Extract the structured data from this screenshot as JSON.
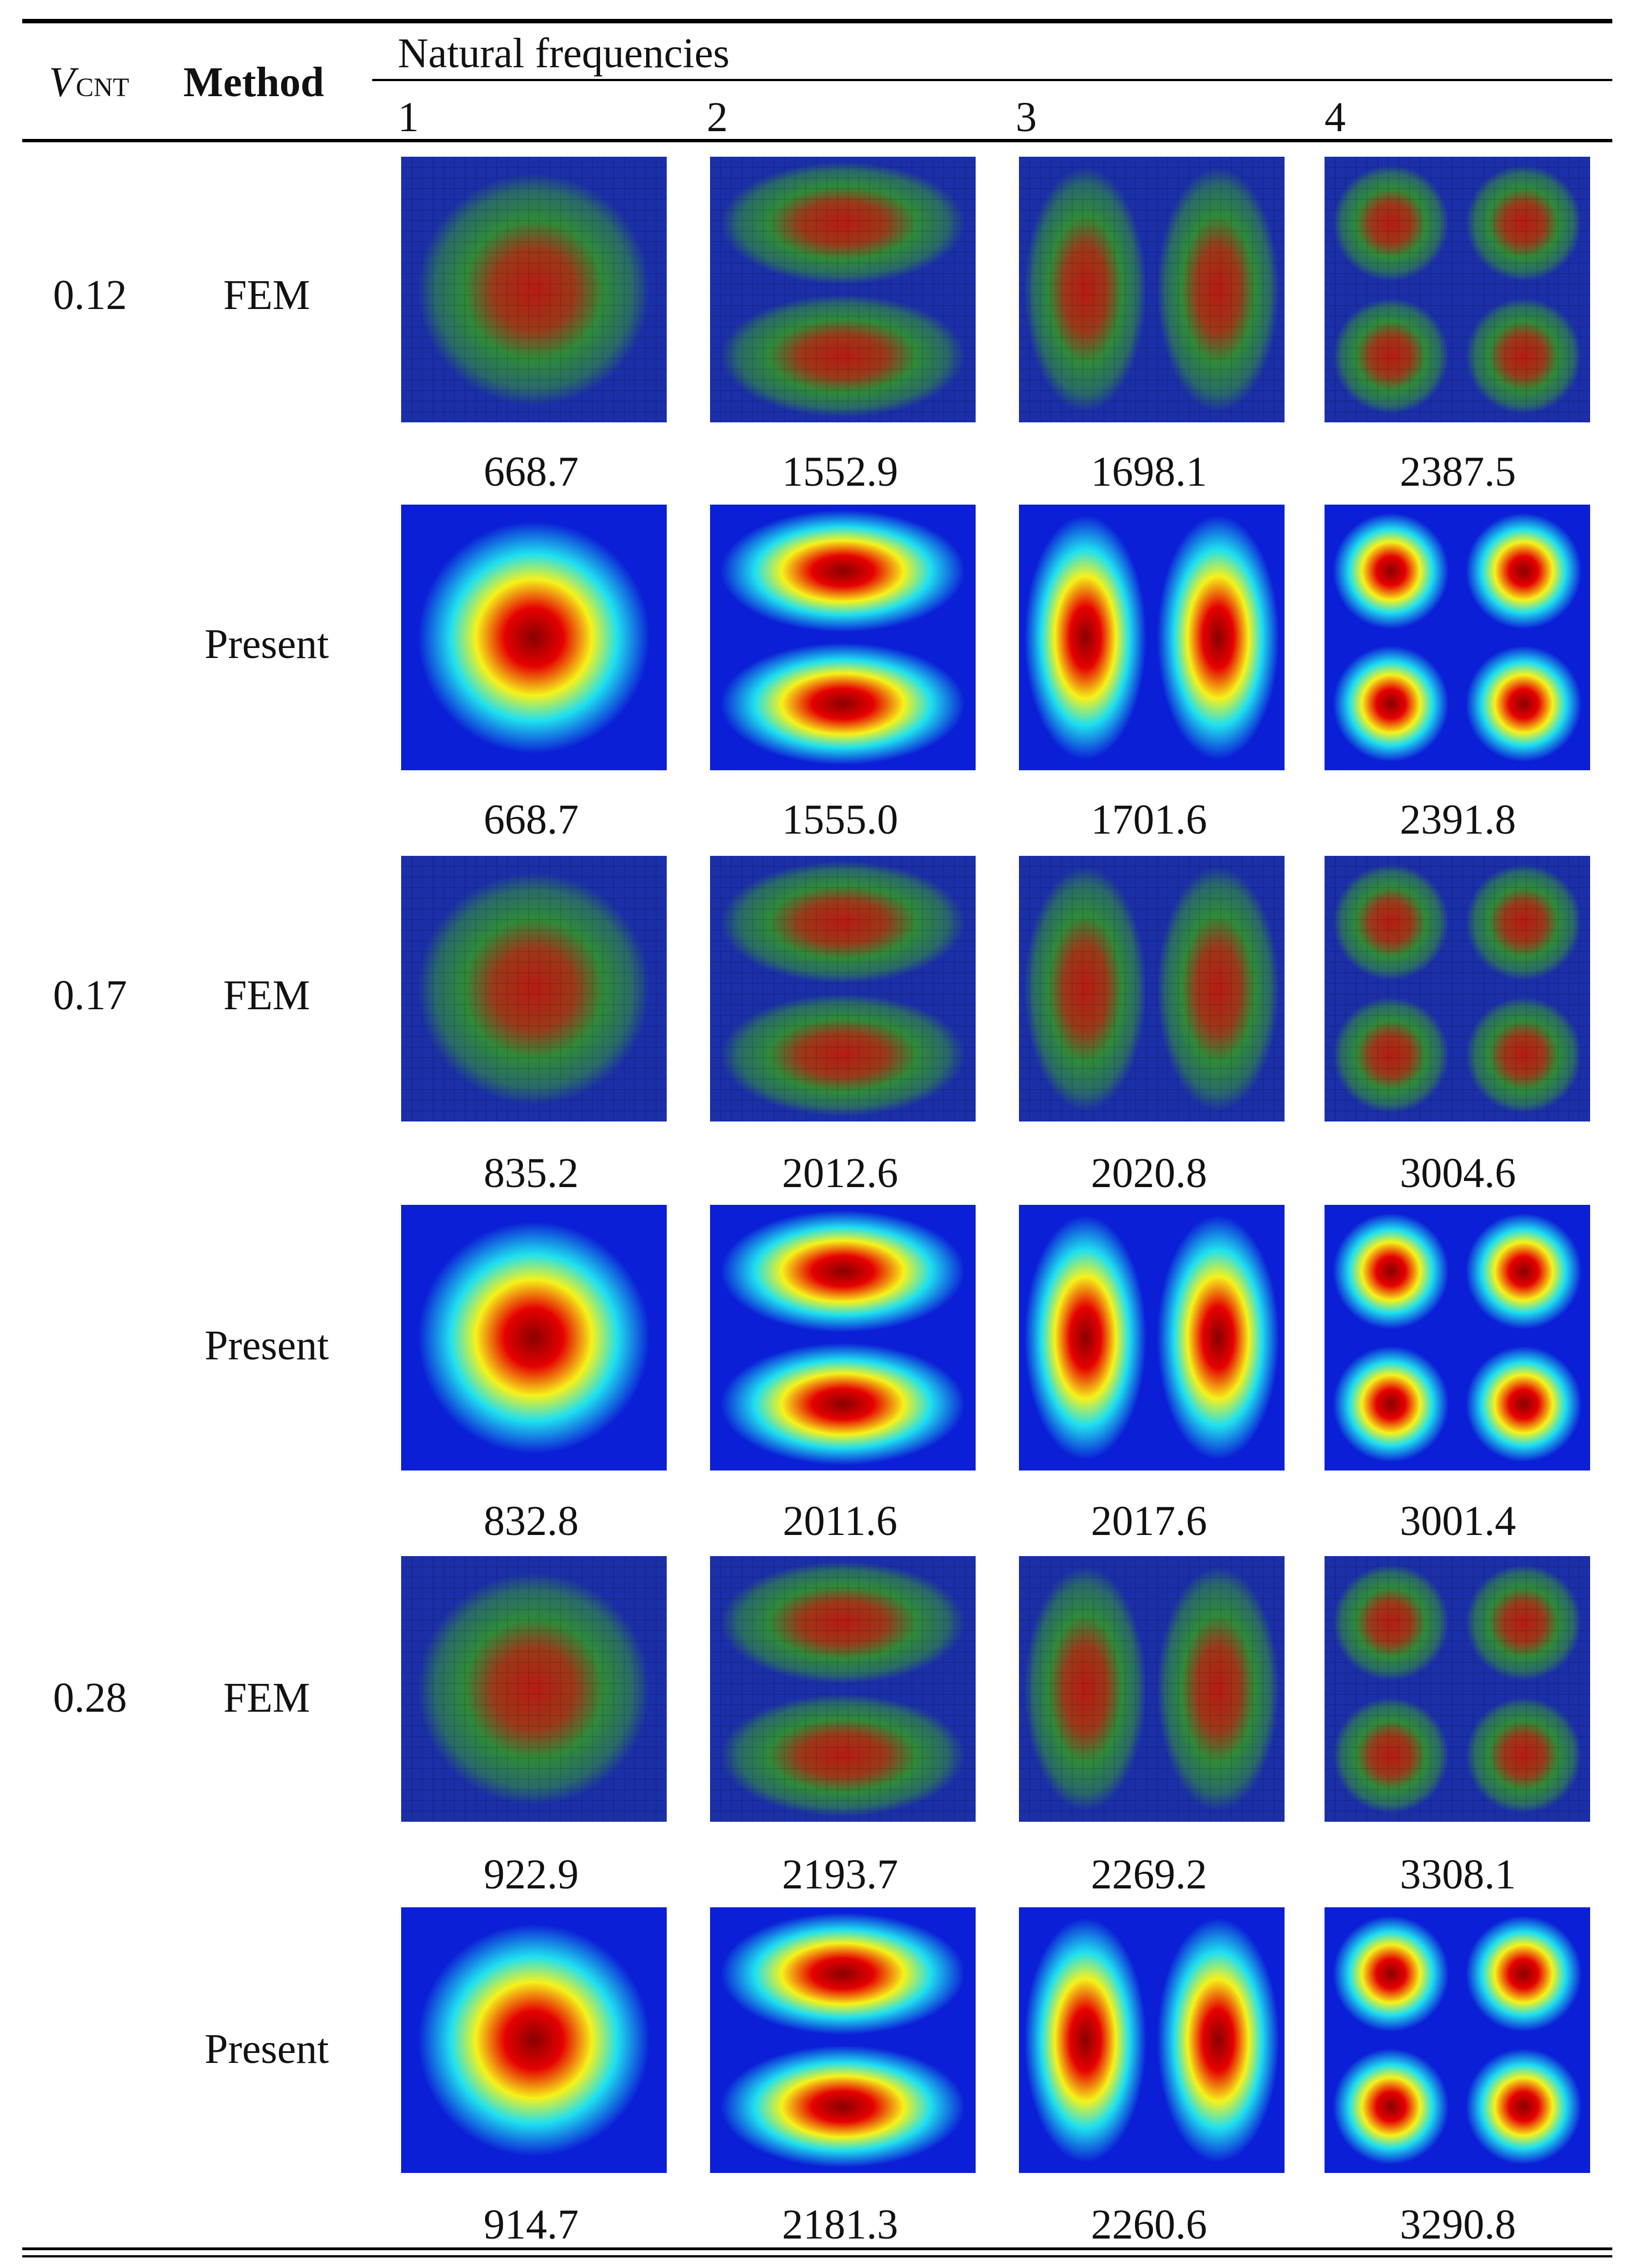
{
  "header": {
    "vcnt_main": "V",
    "vcnt_sub": "CNT",
    "method": "Method",
    "natural_frequencies": "Natural frequencies",
    "modes": [
      "1",
      "2",
      "3",
      "4"
    ]
  },
  "rows": [
    {
      "vcnt": "0.12",
      "method": "FEM",
      "freqs": [
        "668.7",
        "1552.9",
        "1698.1",
        "2387.5"
      ]
    },
    {
      "vcnt": "",
      "method": "Present",
      "freqs": [
        "668.7",
        "1555.0",
        "1701.6",
        "2391.8"
      ]
    },
    {
      "vcnt": "0.17",
      "method": "FEM",
      "freqs": [
        "835.2",
        "2012.6",
        "2020.8",
        "3004.6"
      ]
    },
    {
      "vcnt": "",
      "method": "Present",
      "freqs": [
        "832.8",
        "2011.6",
        "2017.6",
        "3001.4"
      ]
    },
    {
      "vcnt": "0.28",
      "method": "FEM",
      "freqs": [
        "922.9",
        "2193.7",
        "2269.2",
        "3308.1"
      ]
    },
    {
      "vcnt": "",
      "method": "Present",
      "freqs": [
        "914.7",
        "2181.3",
        "2260.6",
        "3290.8"
      ]
    }
  ],
  "colors": {
    "fem_bg": "#1b2fa8",
    "fem_mid": "#2f8a3a",
    "fem_peak": "#b81a12",
    "present_bg": "#0b1fd6",
    "present_cyan": "#1fe0f0",
    "present_yellow": "#f6f21a",
    "present_red": "#e60000",
    "present_peak": "#8a0000"
  }
}
